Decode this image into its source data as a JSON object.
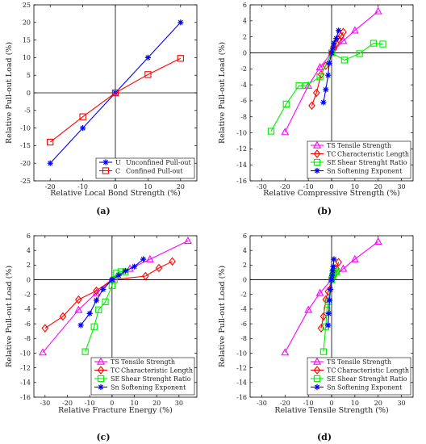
{
  "chart_data": [
    {
      "type": "line",
      "panel_label": "(a)",
      "xlabel": "Relative Local Bond Strength (%)",
      "ylabel": "Relative Pull-out Load (%)",
      "xlim": [
        -25,
        25
      ],
      "ylim": [
        -25,
        25
      ],
      "xticks": [
        -20,
        -10,
        0,
        10,
        20
      ],
      "yticks": [
        -25,
        -20,
        -15,
        -10,
        -5,
        0,
        5,
        10,
        15,
        20,
        25
      ],
      "legend_position": "bottom-right",
      "series": [
        {
          "code": "U",
          "name": "Unconfined Pull-out",
          "color": "#0000ff",
          "marker": "star",
          "x": [
            -20,
            -10,
            0,
            10,
            20
          ],
          "y": [
            -20,
            -10,
            0,
            10,
            20
          ]
        },
        {
          "code": "C",
          "name": "Confined Pull-out",
          "color": "#ff0000",
          "marker": "square",
          "x": [
            -20,
            -10,
            0,
            10,
            20
          ],
          "y": [
            -14,
            -6.8,
            0,
            5.2,
            9.8
          ]
        }
      ]
    },
    {
      "type": "line",
      "panel_label": "(b)",
      "xlabel": "Relative Compressive Strength (%)",
      "ylabel": "Relative Pull-out Load (%)",
      "xlim": [
        -35,
        35
      ],
      "ylim": [
        -16,
        6
      ],
      "xticks": [
        -30,
        -20,
        -10,
        0,
        10,
        20,
        30
      ],
      "yticks": [
        -16,
        -14,
        -12,
        -10,
        -8,
        -6,
        -4,
        -2,
        0,
        2,
        4,
        6
      ],
      "legend_position": "bottom-right",
      "series": [
        {
          "code": "TS",
          "name": "Tensile Strength",
          "color": "#ff00ff",
          "marker": "triangle",
          "x": [
            -20,
            -10,
            -5,
            0,
            5,
            10,
            20
          ],
          "y": [
            -9.9,
            -4.1,
            -1.8,
            0,
            1.5,
            2.8,
            5.2
          ]
        },
        {
          "code": "TC",
          "name": "Characteristic Length",
          "color": "#ff0000",
          "marker": "diamond",
          "x": [
            -8.5,
            -6.5,
            -4.5,
            -2.5,
            0,
            1,
            2,
            3,
            4,
            5
          ],
          "y": [
            -6.6,
            -5,
            -2.7,
            -1.6,
            0,
            0.5,
            1.2,
            1.7,
            2.1,
            2.6
          ]
        },
        {
          "code": "SE",
          "name": "Shear Strenght Ratio",
          "color": "#00ee00",
          "marker": "square",
          "x": [
            -26,
            -19.5,
            -14,
            -11,
            -5,
            0,
            5.5,
            12,
            18,
            22
          ],
          "y": [
            -9.8,
            -6.4,
            -4.1,
            -4.1,
            -3,
            0,
            -0.9,
            -0.1,
            1.2,
            1.1
          ]
        },
        {
          "code": "Sn",
          "name": "Softening Exponent",
          "color": "#0000ff",
          "marker": "star",
          "x": [
            -3.5,
            -2.5,
            -1.5,
            -1,
            0,
            0.5,
            1,
            2,
            3
          ],
          "y": [
            -6.2,
            -4.6,
            -2.8,
            -1.3,
            0,
            0.6,
            1.2,
            1.8,
            2.8
          ]
        }
      ]
    },
    {
      "type": "line",
      "panel_label": "(c)",
      "xlabel": "Relative Fracture Energy (%)",
      "ylabel": "Relative Pull-out Load (%)",
      "xlim": [
        -35,
        38
      ],
      "ylim": [
        -16,
        6
      ],
      "xticks": [
        -30,
        -20,
        -10,
        0,
        10,
        20,
        30
      ],
      "yticks": [
        -16,
        -14,
        -12,
        -10,
        -8,
        -6,
        -4,
        -2,
        0,
        2,
        4,
        6
      ],
      "legend_position": "bottom-right",
      "series": [
        {
          "code": "TS",
          "name": "Tensile Strength",
          "color": "#ff00ff",
          "marker": "triangle",
          "x": [
            -31,
            -15,
            -7,
            0,
            8,
            17,
            34
          ],
          "y": [
            -9.9,
            -4.1,
            -1.8,
            0,
            1.5,
            2.8,
            5.3
          ]
        },
        {
          "code": "TC",
          "name": "Characteristic Length",
          "color": "#ff0000",
          "marker": "diamond",
          "x": [
            -30,
            -22,
            -15,
            -7,
            0,
            15,
            21,
            27
          ],
          "y": [
            -6.6,
            -5,
            -2.7,
            -1.5,
            0,
            0.5,
            1.6,
            2.5
          ]
        },
        {
          "code": "SE",
          "name": "Shear Strenght Ratio",
          "color": "#00ee00",
          "marker": "square",
          "x": [
            -12,
            -8,
            -6,
            -3,
            0,
            1,
            2,
            4,
            6
          ],
          "y": [
            -9.8,
            -6.4,
            -4.1,
            -3,
            -0.8,
            0,
            0.9,
            1.1,
            1.1
          ]
        },
        {
          "code": "Sn",
          "name": "Softening Exponent",
          "color": "#0000ff",
          "marker": "star",
          "x": [
            -14,
            -10,
            -7,
            -4,
            0,
            3,
            6,
            10,
            14
          ],
          "y": [
            -6.2,
            -4.6,
            -2.8,
            -1.3,
            0,
            0.6,
            1.2,
            1.8,
            2.8
          ]
        }
      ]
    },
    {
      "type": "line",
      "panel_label": "(d)",
      "xlabel": "Relative Tensile Strength (%)",
      "ylabel": "Relative Pull-out Load (%)",
      "xlim": [
        -35,
        35
      ],
      "ylim": [
        -16,
        6
      ],
      "xticks": [
        -30,
        -20,
        -10,
        0,
        10,
        20,
        30
      ],
      "yticks": [
        -16,
        -14,
        -12,
        -10,
        -8,
        -6,
        -4,
        -2,
        0,
        2,
        4,
        6
      ],
      "legend_position": "bottom-right",
      "series": [
        {
          "code": "TS",
          "name": "Tensile Strength",
          "color": "#ff00ff",
          "marker": "triangle",
          "x": [
            -20,
            -10,
            -5,
            0,
            5,
            10,
            20
          ],
          "y": [
            -9.9,
            -4.1,
            -1.8,
            0,
            1.5,
            2.8,
            5.2
          ]
        },
        {
          "code": "TC",
          "name": "Characteristic Length",
          "color": "#ff0000",
          "marker": "diamond",
          "x": [
            -4.5,
            -3.5,
            -2.5,
            -1.5,
            0,
            1,
            2,
            3
          ],
          "y": [
            -6.6,
            -5,
            -2.7,
            -1.6,
            0,
            0.6,
            1.5,
            2.4
          ]
        },
        {
          "code": "SE",
          "name": "Shear Strenght Ratio",
          "color": "#00ee00",
          "marker": "square",
          "x": [
            -3.5,
            -2.5,
            -2,
            -1.5,
            0,
            0.5,
            1,
            1.5,
            2
          ],
          "y": [
            -9.8,
            -6.4,
            -4.1,
            -3,
            0,
            0.5,
            0.9,
            1.1,
            1.1
          ]
        },
        {
          "code": "Sn",
          "name": "Softening Exponent",
          "color": "#0000ff",
          "marker": "star",
          "x": [
            -1.5,
            -1.2,
            -0.9,
            -0.5,
            0,
            0.2,
            0.4,
            0.7,
            1
          ],
          "y": [
            -6.2,
            -4.6,
            -2.8,
            -1.3,
            0,
            0.6,
            1.2,
            1.8,
            2.8
          ]
        }
      ]
    }
  ]
}
